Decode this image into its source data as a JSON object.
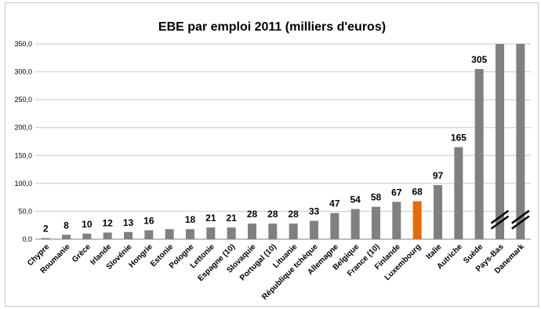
{
  "chart_data": {
    "type": "bar",
    "title": "EBE par emploi 2011 (milliers d'euros)",
    "xlabel": "",
    "ylabel": "",
    "ylim": [
      0,
      350
    ],
    "yticks": [
      "0,0",
      "50,0",
      "100,0",
      "150,0",
      "200,0",
      "250,0",
      "300,0",
      "350,0"
    ],
    "ytick_values": [
      0,
      50,
      100,
      150,
      200,
      250,
      300,
      350
    ],
    "grid": true,
    "legend": "none",
    "categories": [
      "Chypre",
      "Roumanie",
      "Grèce",
      "Irlande",
      "Slovénie",
      "Hongrie",
      "Estonie",
      "Pologne",
      "Lettonie",
      "Espagne (10)",
      "Slovaquie",
      "Portugal (10)",
      "Lituanie",
      "République tchèque",
      "Allemagne",
      "Belgique",
      "France (10)",
      "Finlande",
      "Luxembourg",
      "Italie",
      "Autriche",
      "Suède",
      "Pays-Bas",
      "Danemark"
    ],
    "values": [
      2,
      8,
      10,
      12,
      13,
      16,
      18,
      18,
      21,
      21,
      28,
      28,
      28,
      33,
      47,
      54,
      58,
      67,
      68,
      97,
      165,
      305,
      null,
      null
    ],
    "data_labels": [
      "2",
      "8",
      "10",
      "12",
      "13",
      "16",
      "",
      "18",
      "21",
      "21",
      "28",
      "28",
      "28",
      "33",
      "47",
      "54",
      "58",
      "67",
      "68",
      "97",
      "165",
      "305",
      "",
      ""
    ],
    "truncated": [
      "Pays-Bas",
      "Danemark"
    ],
    "highlight": "Luxembourg",
    "colors": {
      "bar": "#808080",
      "highlight": "#e36c0a",
      "break_mark": "#000000"
    }
  }
}
